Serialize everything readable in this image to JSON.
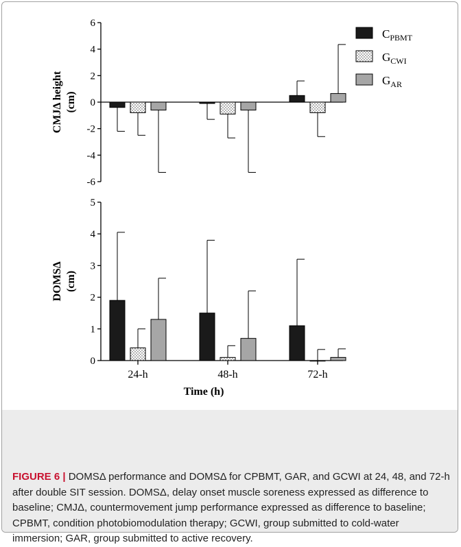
{
  "figure": {
    "caption_lead": "FIGURE 6 |",
    "caption_text": "DOMSΔ performance and DOMSΔ for CPBMT, GAR, and GCWI at 24, 48, and 72-h after double SIT session. DOMSΔ, delay onset muscle soreness expressed as difference to baseline; CMJΔ, countermovement jump performance expressed as difference to baseline; CPBMT, condition photobiomodulation therapy; GCWI, group submitted to cold-water immersion; GAR, group submitted to active recovery."
  },
  "legend": [
    {
      "base": "C",
      "sub": "PBMT",
      "pattern": "solid-black"
    },
    {
      "base": "G",
      "sub": "CWI",
      "pattern": "dotted-white"
    },
    {
      "base": "G",
      "sub": "AR",
      "pattern": "solid-gray"
    }
  ],
  "colors": {
    "black_bar": "#1a1a1a",
    "gray_bar": "#a6a6a6",
    "dotted_bar": "#ffffff"
  },
  "chart_data": [
    {
      "type": "bar",
      "ylabel_line1": "CMJΔ height",
      "ylabel_line2": "(cm)",
      "categories": [
        "24-h",
        "48-h",
        "72-h"
      ],
      "ylim": [
        -6,
        6
      ],
      "yticks": [
        -6,
        -4,
        -2,
        0,
        2,
        4,
        6
      ],
      "error_bars": "one-sided",
      "series": [
        {
          "name": "CPBMT",
          "values": [
            -0.4,
            -0.1,
            0.5
          ],
          "errors": [
            1.8,
            1.2,
            1.1
          ]
        },
        {
          "name": "GCWI",
          "values": [
            -0.8,
            -0.9,
            -0.8
          ],
          "errors": [
            1.7,
            1.8,
            1.8
          ]
        },
        {
          "name": "GAR",
          "values": [
            -0.6,
            -0.6,
            0.65
          ],
          "errors": [
            4.7,
            4.7,
            3.7
          ]
        }
      ]
    },
    {
      "type": "bar",
      "ylabel_line1": "DOMSΔ",
      "ylabel_line2": "(cm)",
      "xlabel": "Time (h)",
      "categories": [
        "24-h",
        "48-h",
        "72-h"
      ],
      "ylim": [
        0,
        5
      ],
      "yticks": [
        0,
        1,
        2,
        3,
        4,
        5
      ],
      "error_bars": "one-sided",
      "series": [
        {
          "name": "CPBMT",
          "values": [
            1.9,
            1.5,
            1.1
          ],
          "errors": [
            2.15,
            2.3,
            2.1
          ]
        },
        {
          "name": "GCWI",
          "values": [
            0.4,
            0.1,
            0.0
          ],
          "errors": [
            0.6,
            0.37,
            0.35
          ]
        },
        {
          "name": "GAR",
          "values": [
            1.3,
            0.7,
            0.1
          ],
          "errors": [
            1.3,
            1.5,
            0.27
          ]
        }
      ]
    }
  ]
}
